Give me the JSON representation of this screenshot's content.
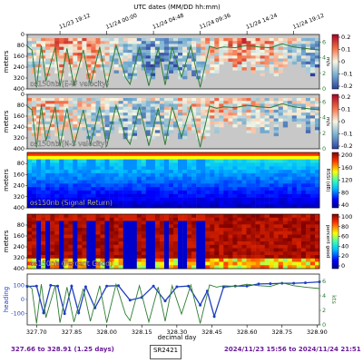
{
  "top_axis_title": "UTC dates (MM/DD hh:mm)",
  "top_ticks": [
    "11/23 19:12",
    "11/24 00:00",
    "11/24 04:48",
    "11/24 09:36",
    "11/24 14:24",
    "11/24 19:12"
  ],
  "x_axis": {
    "label": "decimal day",
    "range": [
      327.66,
      328.91
    ],
    "ticks": [
      "327.70",
      "327.85",
      "328.00",
      "328.15",
      "328.30",
      "328.45",
      "328.60",
      "328.75",
      "328.90"
    ]
  },
  "chart_data": [
    {
      "type": "heatmap",
      "title": "os150nb (E-W velocity)",
      "ylabel": "meters",
      "ylim": [
        400,
        0
      ],
      "yticks": [
        "0",
        "80",
        "160",
        "240",
        "320",
        "400"
      ],
      "colorbar": {
        "label": "m/s",
        "range": [
          -0.2,
          0.2
        ],
        "ticks": [
          "0.2",
          "0.1",
          "0",
          "-0.1",
          "-0.2"
        ],
        "cmap": "RdYlBu_r"
      },
      "overlay": {
        "name": "speed",
        "right_axis": "kts",
        "range": [
          0,
          7
        ],
        "ticks": [
          "0",
          "2",
          "4",
          "6"
        ],
        "color": "#2e7d32"
      }
    },
    {
      "type": "heatmap",
      "title": "os150nb (N-S velocity)",
      "ylabel": "meters",
      "ylim": [
        400,
        0
      ],
      "yticks": [
        "0",
        "80",
        "160",
        "240",
        "320",
        "400"
      ],
      "colorbar": {
        "label": "m/s",
        "range": [
          -0.2,
          0.2
        ],
        "ticks": [
          "0.2",
          "0.1",
          "0",
          "-0.1",
          "-0.2"
        ],
        "cmap": "RdYlBu_r"
      },
      "overlay": {
        "name": "speed",
        "right_axis": "kts",
        "range": [
          0,
          7
        ],
        "ticks": [
          "0",
          "2",
          "4",
          "6"
        ],
        "color": "#2e7d32"
      }
    },
    {
      "type": "heatmap",
      "title": "os150nb (Signal Return)",
      "ylabel": "meters",
      "ylim": [
        400,
        0
      ],
      "yticks": [
        "80",
        "160",
        "240",
        "320",
        "400"
      ],
      "colorbar": {
        "label": "RSSI (dB)",
        "range": [
          0,
          200
        ],
        "ticks": [
          "200",
          "160",
          "120",
          "80",
          "40"
        ],
        "cmap": "jet"
      }
    },
    {
      "type": "heatmap",
      "title": "os150nb (Percent Good)",
      "ylabel": "meters",
      "ylim": [
        400,
        0
      ],
      "yticks": [
        "80",
        "160",
        "240",
        "320",
        "400"
      ],
      "colorbar": {
        "label": "percent good",
        "range": [
          0,
          100
        ],
        "ticks": [
          "100",
          "80",
          "60",
          "40",
          "20",
          "0"
        ],
        "cmap": "jet"
      }
    },
    {
      "type": "line",
      "ylabel": "heading",
      "yticks": [
        "100",
        "0",
        "-100"
      ],
      "ylim": [
        -180,
        180
      ],
      "right_axis": {
        "label": "kts",
        "range": [
          0,
          7
        ],
        "ticks": [
          "0",
          "2",
          "4",
          "6"
        ]
      },
      "series": [
        {
          "name": "heading",
          "color": "#1f3fbf",
          "style": "points",
          "x": [
            327.66,
            327.7,
            327.73,
            327.76,
            327.79,
            327.82,
            327.85,
            327.88,
            327.91,
            327.95,
            328.0,
            328.05,
            328.1,
            328.15,
            328.2,
            328.25,
            328.3,
            328.35,
            328.4,
            328.43,
            328.46,
            328.5,
            328.55,
            328.6,
            328.65,
            328.7,
            328.75,
            328.8,
            328.85,
            328.91
          ],
          "y": [
            92,
            95,
            -95,
            100,
            95,
            -100,
            95,
            -95,
            90,
            -60,
            95,
            98,
            -5,
            15,
            95,
            -10,
            90,
            95,
            -40,
            60,
            -120,
            88,
            95,
            95,
            110,
            112,
            115,
            115,
            118,
            125
          ]
        },
        {
          "name": "speed",
          "color": "#2e7d32",
          "style": "line",
          "x": [
            327.66,
            327.68,
            327.7,
            327.72,
            327.74,
            327.78,
            327.8,
            327.83,
            327.86,
            327.9,
            327.93,
            327.97,
            328.0,
            328.04,
            328.08,
            328.1,
            328.14,
            328.18,
            328.22,
            328.25,
            328.28,
            328.32,
            328.36,
            328.4,
            328.44,
            328.47,
            328.5,
            328.55,
            328.6,
            328.65,
            328.7,
            328.75,
            328.8,
            328.85,
            328.91
          ],
          "y": [
            5.5,
            5.0,
            0.2,
            5.6,
            1.0,
            5.4,
            0.3,
            5.2,
            0.4,
            5.0,
            0.5,
            5.4,
            0.3,
            5.6,
            1.5,
            0.6,
            5.4,
            0.4,
            5.2,
            0.5,
            5.4,
            1.5,
            5.5,
            0.2,
            5.5,
            5.2,
            5.4,
            5.3,
            5.6,
            5.4,
            5.3,
            5.8,
            5.4,
            5.2,
            5.0
          ]
        }
      ]
    }
  ],
  "footer": {
    "left": "327.66 to 328.91 (1.25 days)",
    "mid": "SR2421",
    "right": "2024/11/23 15:56 to 2024/11/24 21:51"
  }
}
